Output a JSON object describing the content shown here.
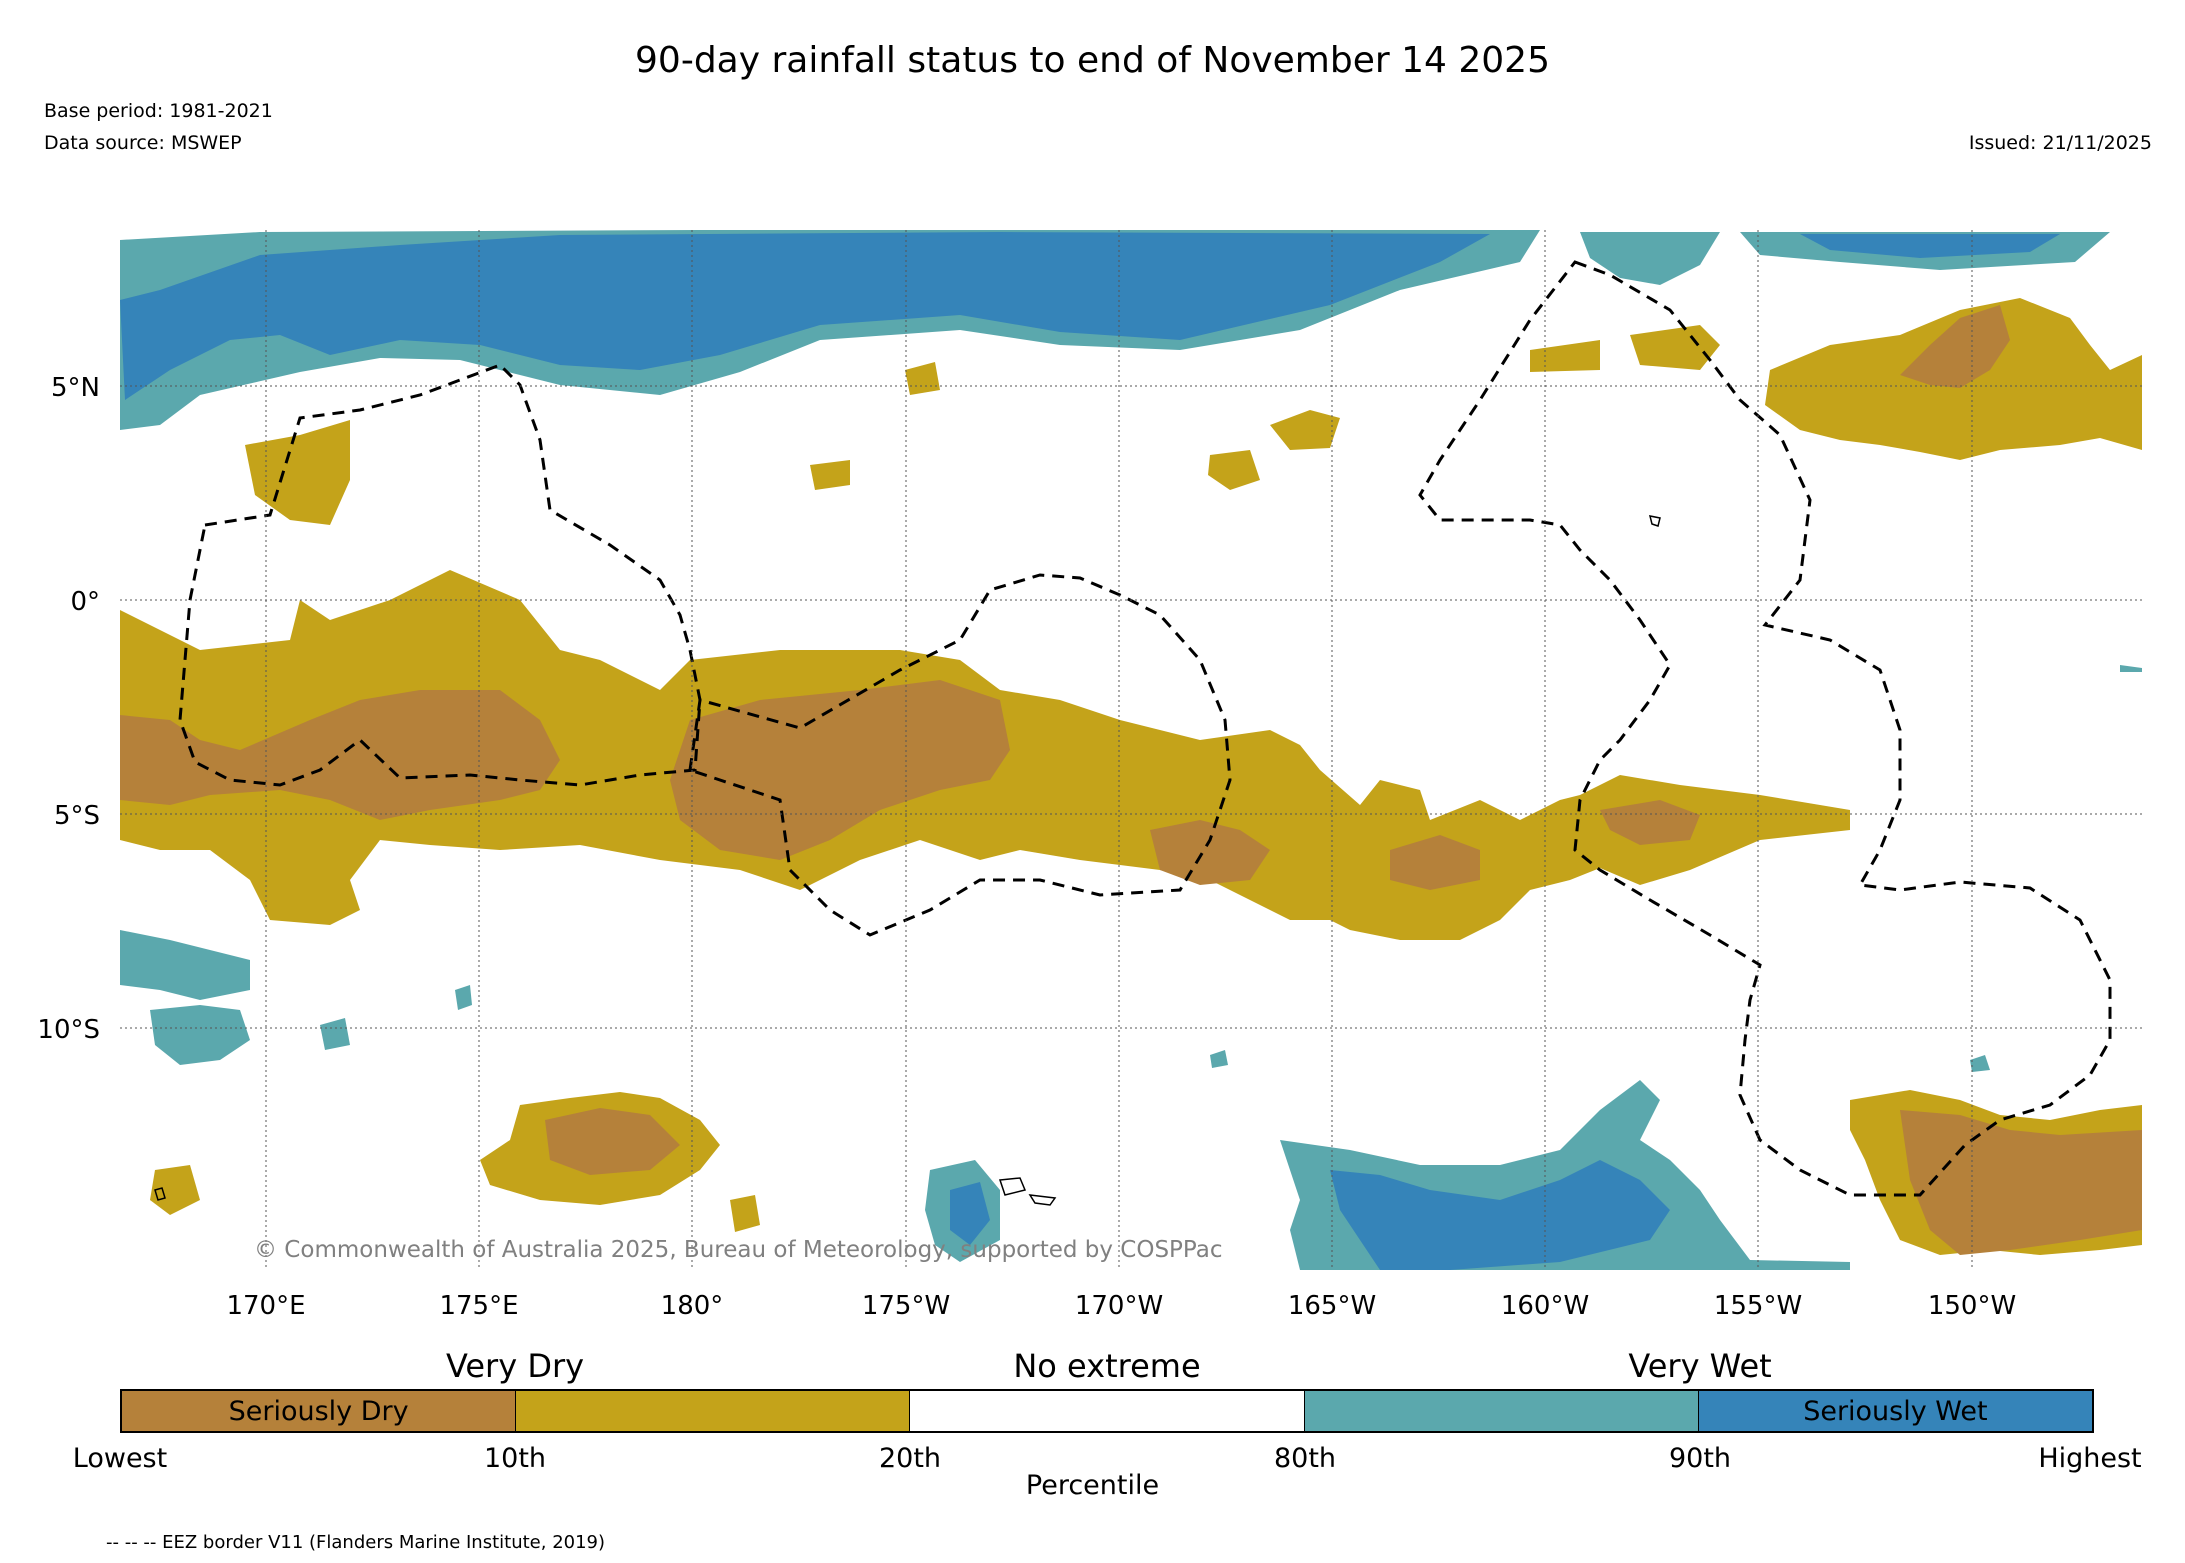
{
  "title": "90-day rainfall status to end of November 14 2025",
  "base_period": "Base period: 1981-2021",
  "data_source": "Data source: MSWEP",
  "issued": "Issued: 21/11/2025",
  "copyright": "© Commonwealth of Australia 2025, Bureau of Meteorology, supported by COSPPac",
  "map": {
    "lat_labels": [
      "5°N",
      "0°",
      "5°S",
      "10°S"
    ],
    "lon_labels": [
      "170°E",
      "175°E",
      "180°",
      "175°W",
      "170°W",
      "165°W",
      "160°W",
      "155°W",
      "150°W"
    ],
    "colors": {
      "seriously_dry": "#b5813a",
      "very_dry": "#c4a31a",
      "no_extreme": "#ffffff",
      "very_wet": "#5ba8ad",
      "seriously_wet": "#3584b9"
    }
  },
  "legend": {
    "categories": [
      "Very Dry",
      "No extreme",
      "Very Wet"
    ],
    "segments": [
      {
        "label": "Seriously Dry",
        "color": "#b5813a"
      },
      {
        "label": "",
        "color": "#c4a31a"
      },
      {
        "label": "",
        "color": "#ffffff"
      },
      {
        "label": "",
        "color": "#5ba8ad"
      },
      {
        "label": "Seriously Wet",
        "color": "#3584b9"
      }
    ],
    "ticks": [
      "Lowest",
      "10th",
      "20th",
      "80th",
      "90th",
      "Highest"
    ],
    "axis_label": "Percentile",
    "eez_note": "-- -- -- EEZ border V11 (Flanders Marine Institute, 2019)"
  }
}
